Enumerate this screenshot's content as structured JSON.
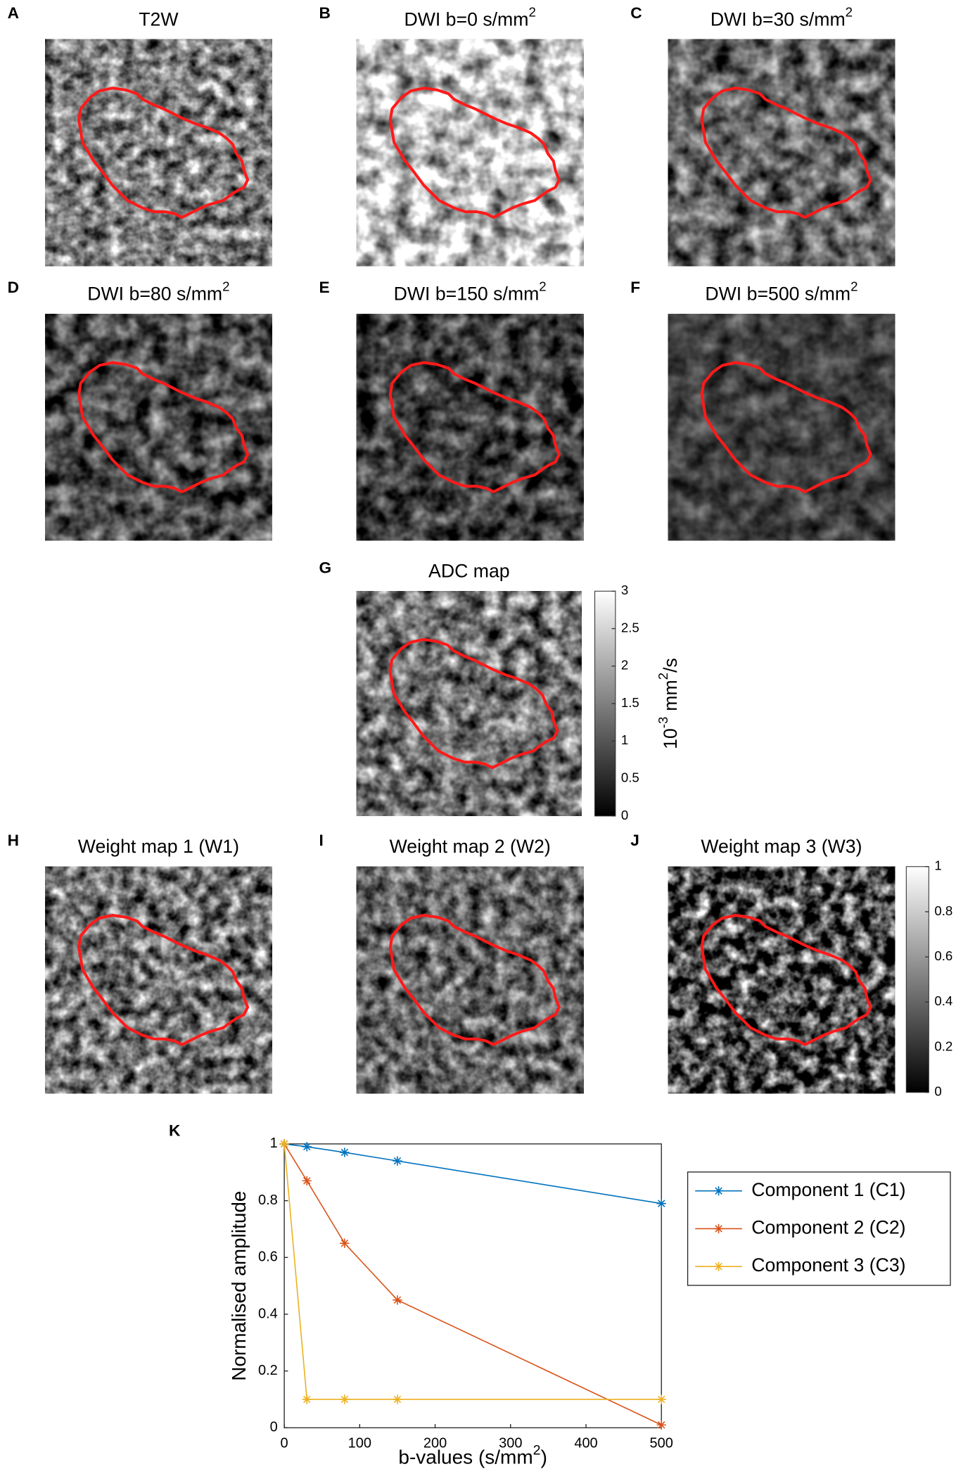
{
  "panels": [
    {
      "letter": "A",
      "title": "T2W"
    },
    {
      "letter": "B",
      "title": "DWI b=0 s/mm",
      "title_sup": "2"
    },
    {
      "letter": "C",
      "title": "DWI b=30 s/mm",
      "title_sup": "2"
    },
    {
      "letter": "D",
      "title": "DWI b=80 s/mm",
      "title_sup": "2"
    },
    {
      "letter": "E",
      "title": "DWI b=150 s/mm",
      "title_sup": "2"
    },
    {
      "letter": "F",
      "title": "DWI b=500 s/mm",
      "title_sup": "2"
    },
    {
      "letter": "G",
      "title": "ADC map"
    },
    {
      "letter": "H",
      "title": "Weight map 1 (W1)"
    },
    {
      "letter": "I",
      "title": "Weight map 2 (W2)"
    },
    {
      "letter": "J",
      "title": "Weight map 3 (W3)"
    }
  ],
  "colorbars": [
    {
      "lim": [
        0,
        3
      ],
      "ticks": [
        0,
        0.5,
        1,
        1.5,
        2,
        2.5,
        3
      ],
      "label": "10",
      "label_exp": "-3",
      "label_unit": "mm",
      "label_unit_exp": "2",
      "label_tail": "/s"
    },
    {
      "lim": [
        0,
        1
      ],
      "ticks": [
        0,
        0.2,
        0.4,
        0.6,
        0.8,
        1
      ]
    }
  ],
  "chart_letter": "K",
  "chart_data": {
    "type": "line",
    "x_label": "b-values (s/mm",
    "x_label_sup": "2",
    "x_label_end": ")",
    "y_label": "Normalised amplitude",
    "x": [
      0,
      30,
      80,
      150,
      500
    ],
    "series": [
      {
        "name": "Component 1 (C1)",
        "color": "#0072bd",
        "values": [
          1,
          0.99,
          0.97,
          0.94,
          0.79
        ]
      },
      {
        "name": "Component 2 (C2)",
        "color": "#d95319",
        "values": [
          1,
          0.87,
          0.65,
          0.45,
          0.01
        ]
      },
      {
        "name": "Component 3 (C3)",
        "color": "#edb120",
        "values": [
          1,
          0.1,
          0.1,
          0.1,
          0.1
        ]
      }
    ],
    "xlim": [
      0,
      500
    ],
    "xticks": [
      0,
      100,
      200,
      300,
      400,
      500
    ],
    "ylim": [
      0,
      1
    ],
    "yticks": [
      0,
      0.2,
      0.4,
      0.6,
      0.8,
      1
    ],
    "marker": "asterisk",
    "legend": "right"
  }
}
